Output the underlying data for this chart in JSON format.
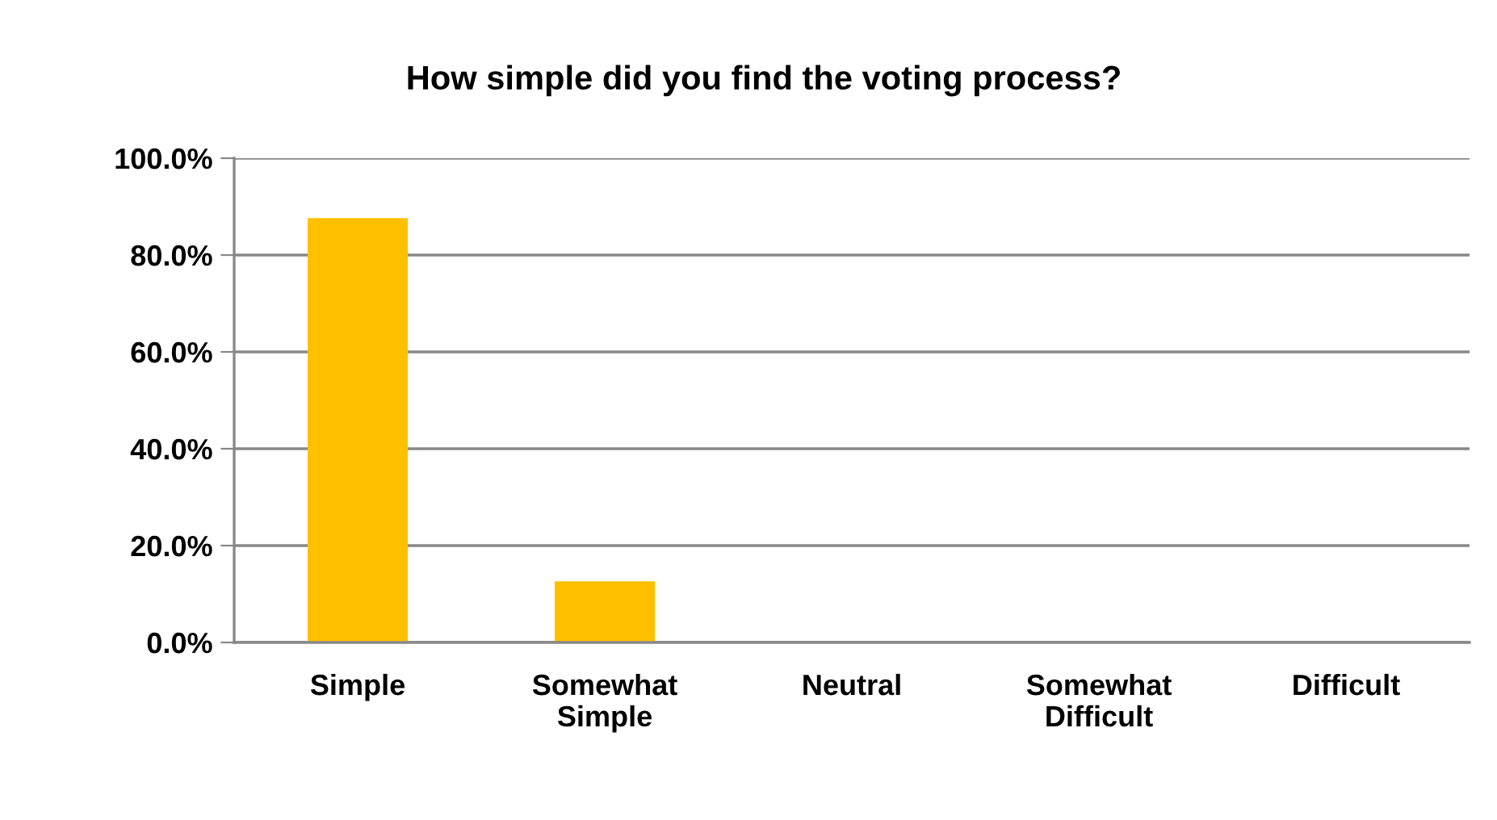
{
  "chart_data": {
    "type": "bar",
    "title": "How simple did you find the voting process?",
    "categories": [
      "Simple",
      "Somewhat\nSimple",
      "Neutral",
      "Somewhat\nDifficult",
      "Difficult"
    ],
    "values": [
      87.5,
      12.5,
      0,
      0,
      0
    ],
    "color": "#ffc000",
    "ylim": [
      0,
      100
    ],
    "yticks": [
      {
        "value": 0,
        "label": "0.0%"
      },
      {
        "value": 20,
        "label": "20.0%"
      },
      {
        "value": 40,
        "label": "40.0%"
      },
      {
        "value": 60,
        "label": "60.0%"
      },
      {
        "value": 80,
        "label": "80.0%"
      },
      {
        "value": 100,
        "label": "100.0%"
      }
    ],
    "grid": "y",
    "legend": false
  }
}
